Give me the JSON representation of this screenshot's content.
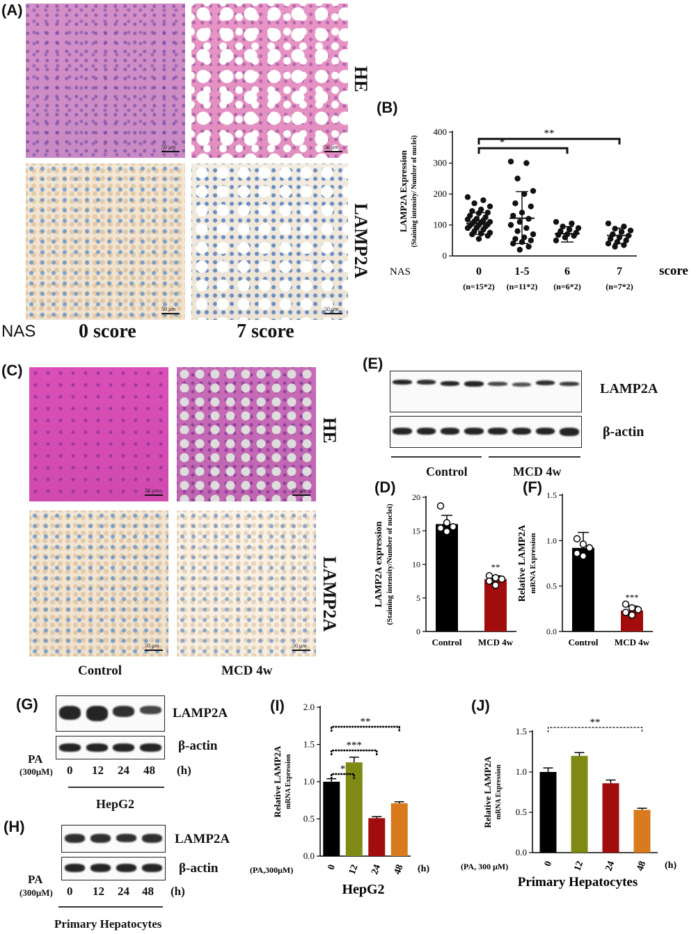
{
  "panels": {
    "A": {
      "label": "(A)",
      "stain1": "HE",
      "stain2": "LAMP2A",
      "nas": "NAS",
      "col1": "0 score",
      "col2": "7 score",
      "scale": "50 μm"
    },
    "B": {
      "label": "(B)"
    },
    "C": {
      "label": "(C)",
      "stain1": "HE",
      "stain2": "LAMP2A",
      "col1": "Control",
      "col2": "MCD 4w",
      "scale": "50 μm"
    },
    "D": {
      "label": "(D)"
    },
    "E": {
      "label": "(E)",
      "band1": "LAMP2A",
      "band2": "β-actin",
      "group1": "Control",
      "group2": "MCD 4w"
    },
    "F": {
      "label": "(F)"
    },
    "G": {
      "label": "(G)",
      "band1": "LAMP2A",
      "band2": "β-actin",
      "pa": "PA",
      "conc": "(300μM)",
      "times": [
        "0",
        "12",
        "24",
        "48"
      ],
      "unit": "(h)",
      "cell": "HepG2"
    },
    "H": {
      "label": "(H)",
      "band1": "LAMP2A",
      "band2": "β-actin",
      "pa": "PA",
      "conc": "(300μM)",
      "times": [
        "0",
        "12",
        "24",
        "48"
      ],
      "unit": "(h)",
      "cell": "Primary Hepatocytes"
    },
    "I": {
      "label": "(I)"
    },
    "J": {
      "label": "(J)"
    }
  },
  "chart_data": [
    {
      "id": "B",
      "type": "scatter",
      "ylabel": "LAMP2A Expression",
      "ylabel2": "(Staining intensity/ Number of nuclei)",
      "ylim": [
        0,
        400
      ],
      "yticks": [
        0,
        100,
        200,
        300,
        400
      ],
      "x_prefix": "NAS",
      "x_suffix": "score",
      "categories": [
        "0",
        "1-5",
        "6",
        "7"
      ],
      "ns": [
        "(n=15*2)",
        "(n=11*2)",
        "(n=6*2)",
        "(n=7*2)"
      ],
      "means": [
        105,
        122,
        72,
        66
      ],
      "sd_low": [
        70,
        40,
        45,
        40
      ],
      "sd_high": [
        140,
        208,
        95,
        90
      ],
      "points": [
        [
          190,
          180,
          170,
          160,
          150,
          145,
          140,
          138,
          130,
          125,
          120,
          118,
          115,
          112,
          110,
          108,
          105,
          102,
          100,
          98,
          95,
          92,
          90,
          85,
          80,
          75,
          72,
          70,
          65,
          55
        ],
        [
          305,
          300,
          250,
          210,
          200,
          170,
          160,
          140,
          130,
          120,
          110,
          100,
          90,
          80,
          70,
          60,
          55,
          50,
          45,
          40,
          30,
          20
        ],
        [
          110,
          105,
          95,
          90,
          85,
          80,
          75,
          70,
          68,
          65,
          60,
          50
        ],
        [
          105,
          95,
          88,
          82,
          78,
          70,
          65,
          60,
          55,
          50,
          45,
          40,
          35,
          30
        ]
      ],
      "significance": [
        {
          "from": 0,
          "to": 2,
          "label": "*"
        },
        {
          "from": 0,
          "to": 3,
          "label": "**"
        }
      ]
    },
    {
      "id": "D",
      "type": "bar",
      "ylabel": "LAMP2A expression",
      "ylabel2": "(Staining intensity/Number of nuclei)",
      "ylim": [
        0,
        20
      ],
      "yticks": [
        0,
        5,
        10,
        15,
        20
      ],
      "categories": [
        "Control",
        "MCD 4w"
      ],
      "values": [
        16,
        7.8
      ],
      "err": [
        1.3,
        0.5
      ],
      "points": [
        [
          18.7,
          16.2,
          15.6,
          15.4,
          14.9
        ],
        [
          8.3,
          8.0,
          7.8,
          7.5,
          6.9
        ]
      ],
      "colors": [
        "#000000",
        "#a10c0c"
      ],
      "annot": [
        "",
        "**"
      ]
    },
    {
      "id": "F",
      "type": "bar",
      "ylabel": "Relative LAMP2A",
      "ylabel2": "mRNA Expression",
      "ylim": [
        0,
        1.5
      ],
      "yticks": [
        "0.0",
        "0.5",
        "1.0",
        "1.5"
      ],
      "categories": [
        "Control",
        "MCD 4w"
      ],
      "values": [
        0.92,
        0.23
      ],
      "err": [
        0.17,
        0.05
      ],
      "points": [
        [
          1.02,
          0.96,
          0.92,
          0.86,
          0.83
        ],
        [
          0.3,
          0.26,
          0.24,
          0.21,
          0.18
        ]
      ],
      "colors": [
        "#000000",
        "#a10c0c"
      ],
      "annot": [
        "",
        "***"
      ]
    },
    {
      "id": "I",
      "type": "bar",
      "ylabel": "Relative LAMP2A",
      "ylabel2": "mRNA Expression",
      "ylim": [
        0,
        2.0
      ],
      "yticks": [
        "0.0",
        "0.5",
        "1.0",
        "1.5",
        "2.0"
      ],
      "x_prefix": "(PA,300μM)",
      "x_suffix": "(h)",
      "title": "HepG2",
      "categories": [
        "0",
        "12",
        "24",
        "48"
      ],
      "values": [
        1.0,
        1.26,
        0.51,
        0.71
      ],
      "err": [
        0.04,
        0.07,
        0.02,
        0.02
      ],
      "colors": [
        "#000000",
        "#7f8a14",
        "#a10c0c",
        "#d97a1c"
      ],
      "significance": [
        {
          "from": 0,
          "to": 1,
          "label": "*"
        },
        {
          "from": 0,
          "to": 2,
          "label": "***"
        },
        {
          "from": 0,
          "to": 3,
          "label": "**"
        }
      ]
    },
    {
      "id": "J",
      "type": "bar",
      "ylabel": "Relative LAMP2A",
      "ylabel2": "mRNA Expression",
      "ylim": [
        0,
        1.5
      ],
      "yticks": [
        "0.0",
        "0.5",
        "1.0",
        "1.5"
      ],
      "x_prefix": "(PA, 300 μM)",
      "x_suffix": "(h)",
      "title": "Primary Hepatocytes",
      "categories": [
        "0",
        "12",
        "24",
        "48"
      ],
      "values": [
        1.0,
        1.2,
        0.86,
        0.53
      ],
      "err": [
        0.05,
        0.04,
        0.04,
        0.02
      ],
      "colors": [
        "#000000",
        "#7f8a14",
        "#a10c0c",
        "#d97a1c"
      ],
      "significance": [
        {
          "from": 0,
          "to": 3,
          "label": "**"
        }
      ]
    }
  ]
}
